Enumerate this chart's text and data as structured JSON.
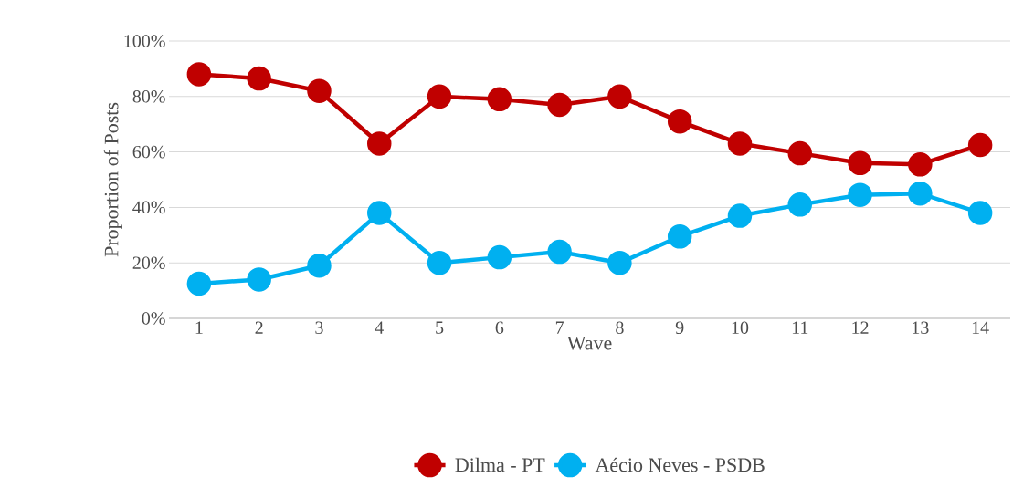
{
  "chart_data": {
    "type": "line",
    "xlabel": "Wave",
    "ylabel": "Proportion of Posts",
    "categories": [
      "1",
      "2",
      "3",
      "4",
      "5",
      "6",
      "7",
      "8",
      "9",
      "10",
      "11",
      "12",
      "13",
      "14"
    ],
    "series": [
      {
        "name": "Dilma - PT",
        "color": "#c00000",
        "values": [
          88,
          86.5,
          82,
          63,
          80,
          79,
          77,
          80,
          71,
          63,
          59.5,
          56,
          55.5,
          62.5
        ]
      },
      {
        "name": "Aécio Neves - PSDB",
        "color": "#00b0f0",
        "values": [
          12.5,
          14,
          19,
          38,
          20,
          22,
          24,
          20,
          29.5,
          37,
          41,
          44.5,
          45,
          38
        ]
      }
    ],
    "ylim": [
      0,
      100
    ],
    "yticks": [
      {
        "value": 0,
        "label": "0%"
      },
      {
        "value": 20,
        "label": "20%"
      },
      {
        "value": 40,
        "label": "40%"
      },
      {
        "value": 60,
        "label": "60%"
      },
      {
        "value": 80,
        "label": "80%"
      },
      {
        "value": 100,
        "label": "100%"
      }
    ],
    "grid": "y",
    "legend": "bottom",
    "marker": "circle",
    "line_style": "solid"
  }
}
